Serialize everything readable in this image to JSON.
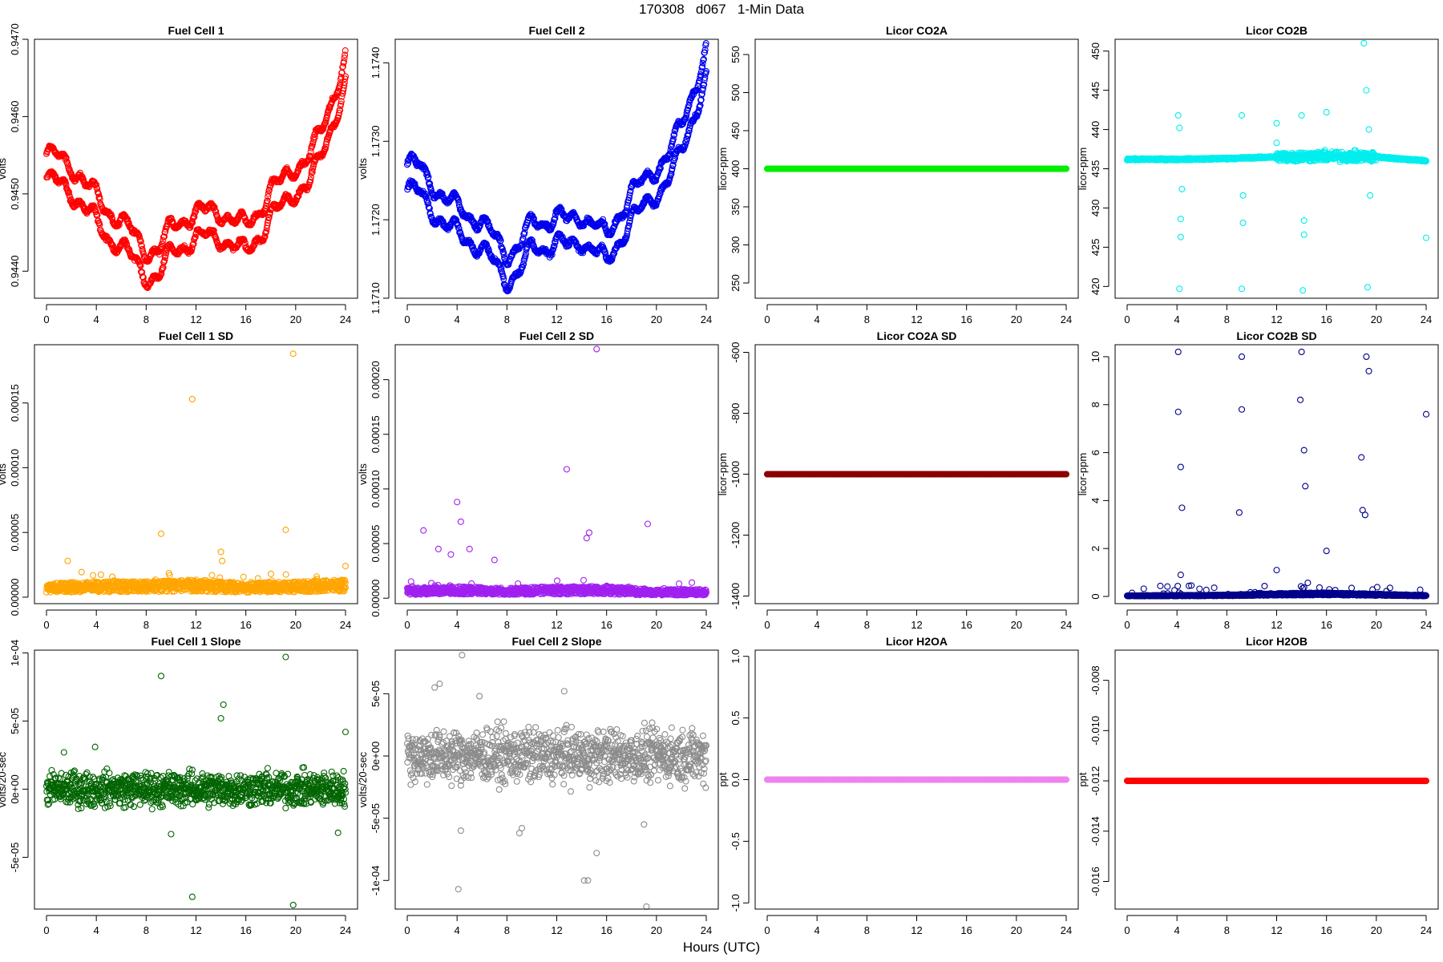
{
  "page_title": "170308   d067   1-Min Data",
  "x_axis_title": "Hours (UTC)",
  "chart_data": [
    {
      "title": "Fuel Cell 1",
      "type": "scatter",
      "ylabel": "volts",
      "color": "#ff0000",
      "xlim": [
        0,
        24
      ],
      "ylim": [
        0.94365,
        0.947
      ],
      "xticks": [
        "0",
        "4",
        "8",
        "12",
        "16",
        "20",
        "24"
      ],
      "yticks": [
        0.944,
        0.945,
        0.946,
        0.947
      ],
      "ytick_labels": [
        "0.9440",
        "0.9450",
        "0.9460",
        "0.9470"
      ],
      "series": [
        {
          "x": [
            0,
            1,
            2,
            3,
            4,
            5,
            6,
            7,
            8,
            9,
            10,
            11,
            12,
            13,
            14,
            15,
            16,
            17,
            18,
            19,
            20,
            21,
            22,
            23,
            24
          ],
          "y": [
            0.94535,
            0.9453,
            0.9452,
            0.945,
            0.9448,
            0.9446,
            0.9445,
            0.9443,
            0.9441,
            0.9441,
            0.9444,
            0.9445,
            0.9446,
            0.9446,
            0.9446,
            0.9445,
            0.9444,
            0.9446,
            0.9449,
            0.945,
            0.9452,
            0.9453,
            0.9456,
            0.9461,
            0.9466
          ]
        }
      ]
    },
    {
      "title": "Fuel Cell 2",
      "type": "scatter",
      "ylabel": "volts",
      "color": "#0000ee",
      "xlim": [
        0,
        24
      ],
      "ylim": [
        1.171,
        1.1743
      ],
      "xticks": [
        "0",
        "4",
        "8",
        "12",
        "16",
        "20",
        "24"
      ],
      "yticks": [
        1.171,
        1.172,
        1.173,
        1.174
      ],
      "ytick_labels": [
        "1.1710",
        "1.1720",
        "1.1730",
        "1.1740"
      ],
      "series": [
        {
          "x": [
            0,
            1,
            2,
            3,
            4,
            5,
            6,
            7,
            8,
            9,
            10,
            11,
            12,
            13,
            14,
            15,
            16,
            17,
            18,
            19,
            20,
            21,
            22,
            23,
            24
          ],
          "y": [
            1.17255,
            1.1725,
            1.1723,
            1.1721,
            1.172,
            1.1719,
            1.1718,
            1.1716,
            1.1714,
            1.1715,
            1.1718,
            1.1718,
            1.1719,
            1.1718,
            1.1719,
            1.1718,
            1.1716,
            1.1719,
            1.1722,
            1.1723,
            1.1725,
            1.1727,
            1.173,
            1.1735,
            1.174
          ]
        }
      ]
    },
    {
      "title": "Licor CO2A",
      "type": "scatter",
      "ylabel": "licor-ppm",
      "color": "#00ee00",
      "xlim": [
        0,
        24
      ],
      "ylim": [
        230,
        570
      ],
      "xticks": [
        "0",
        "4",
        "8",
        "12",
        "16",
        "20",
        "24"
      ],
      "yticks": [
        250,
        300,
        350,
        400,
        450,
        500,
        550
      ],
      "ytick_labels": [
        "250",
        "300",
        "350",
        "400",
        "450",
        "500",
        "550"
      ],
      "series": [
        {
          "x": [
            0,
            24
          ],
          "y": [
            400,
            400
          ]
        }
      ]
    },
    {
      "title": "Licor CO2B",
      "type": "scatter",
      "ylabel": "licor-ppm",
      "color": "#00eeee",
      "xlim": [
        0,
        24
      ],
      "ylim": [
        418.5,
        451.5
      ],
      "xticks": [
        "0",
        "4",
        "8",
        "12",
        "16",
        "20",
        "24"
      ],
      "yticks": [
        420,
        425,
        430,
        435,
        440,
        445,
        450
      ],
      "ytick_labels": [
        "420",
        "425",
        "430",
        "435",
        "440",
        "445",
        "450"
      ],
      "series": [
        {
          "x": [
            0,
            4,
            8,
            12,
            16,
            20,
            24
          ],
          "y": [
            436.2,
            436.2,
            436.3,
            436.5,
            436.6,
            436.5,
            436.0
          ]
        }
      ],
      "outliers": {
        "x": [
          4.1,
          4.2,
          4.2,
          4.3,
          4.3,
          4.4,
          9.2,
          9.2,
          9.3,
          9.3,
          12.0,
          12.0,
          14.0,
          14.1,
          14.2,
          14.2,
          16.0,
          19.0,
          19.2,
          19.3,
          19.4,
          19.5,
          24.0
        ],
        "y": [
          441.8,
          440.2,
          419.7,
          428.6,
          426.3,
          432.4,
          441.8,
          419.7,
          431.6,
          428.1,
          440.8,
          438.3,
          441.8,
          419.5,
          428.4,
          426.6,
          442.2,
          451.0,
          445.0,
          419.9,
          440.0,
          431.6,
          426.2
        ]
      }
    },
    {
      "title": "Fuel Cell 1 SD",
      "type": "scatter",
      "ylabel": "volts",
      "color": "#ffa500",
      "xlim": [
        0,
        24
      ],
      "ylim": [
        -5e-06,
        0.000195
      ],
      "xticks": [
        "0",
        "4",
        "8",
        "12",
        "16",
        "20",
        "24"
      ],
      "yticks": [
        0,
        5e-05,
        0.0001,
        0.00015
      ],
      "ytick_labels": [
        "0.00000",
        "0.00005",
        "0.00010",
        "0.00015"
      ],
      "series": [
        {
          "x": [
            0,
            4,
            8,
            12,
            16,
            20,
            24
          ],
          "y": [
            8e-06,
            9e-06,
            9e-06,
            1e-05,
            8e-06,
            9e-06,
            1e-05
          ]
        }
      ],
      "outliers": {
        "x": [
          1.7,
          9.2,
          11.7,
          14.0,
          14.1,
          19.2,
          19.8,
          24.0
        ],
        "y": [
          2.8e-05,
          4.9e-05,
          0.000153,
          3.5e-05,
          2.8e-05,
          5.2e-05,
          0.000188,
          2.4e-05
        ]
      }
    },
    {
      "title": "Fuel Cell 2 SD",
      "type": "scatter",
      "ylabel": "volts",
      "color": "#a020f0",
      "xlim": [
        0,
        24
      ],
      "ylim": [
        -5e-06,
        0.000232
      ],
      "xticks": [
        "0",
        "4",
        "8",
        "12",
        "16",
        "20",
        "24"
      ],
      "yticks": [
        0,
        5e-05,
        0.0001,
        0.00015,
        0.0002
      ],
      "ytick_labels": [
        "0.00000",
        "0.00005",
        "0.00010",
        "0.00015",
        "0.00020"
      ],
      "series": [
        {
          "x": [
            0,
            4,
            8,
            12,
            16,
            20,
            24
          ],
          "y": [
            7e-06,
            8e-06,
            7e-06,
            8e-06,
            8e-06,
            6e-06,
            6e-06
          ]
        }
      ],
      "outliers": {
        "x": [
          1.3,
          2.5,
          3.5,
          4.0,
          4.3,
          5.0,
          7.0,
          12.8,
          14.4,
          14.6,
          15.2,
          19.3
        ],
        "y": [
          6.2e-05,
          4.5e-05,
          4e-05,
          8.8e-05,
          7e-05,
          4.5e-05,
          3.5e-05,
          0.000118,
          5.5e-05,
          6e-05,
          0.000228,
          6.8e-05
        ]
      }
    },
    {
      "title": "Licor CO2A SD",
      "type": "scatter",
      "ylabel": "licor-ppm",
      "color": "#8b0000",
      "xlim": [
        0,
        24
      ],
      "ylim": [
        -1425,
        -575
      ],
      "xticks": [
        "0",
        "4",
        "8",
        "12",
        "16",
        "20",
        "24"
      ],
      "yticks": [
        -1400,
        -1200,
        -1000,
        -800,
        -600
      ],
      "ytick_labels": [
        "-1400",
        "-1200",
        "-1000",
        "-800",
        "-600"
      ],
      "series": [
        {
          "x": [
            0,
            24
          ],
          "y": [
            -1000,
            -1000
          ]
        }
      ]
    },
    {
      "title": "Licor CO2B SD",
      "type": "scatter",
      "ylabel": "licor-ppm",
      "color": "#00008b",
      "xlim": [
        0,
        24
      ],
      "ylim": [
        -0.3,
        10.5
      ],
      "xticks": [
        "0",
        "4",
        "8",
        "12",
        "16",
        "20",
        "24"
      ],
      "yticks": [
        0,
        2,
        4,
        6,
        8,
        10
      ],
      "ytick_labels": [
        "0",
        "2",
        "4",
        "6",
        "8",
        "10"
      ],
      "series": [
        {
          "x": [
            0,
            4,
            8,
            12,
            16,
            20,
            24
          ],
          "y": [
            0.03,
            0.04,
            0.05,
            0.1,
            0.12,
            0.08,
            0.04
          ]
        }
      ],
      "outliers": {
        "x": [
          4.1,
          4.1,
          4.3,
          4.4,
          4.3,
          9.2,
          9.2,
          9.0,
          14.0,
          13.9,
          14.2,
          14.3,
          12.0,
          16.0,
          18.8,
          19.2,
          19.4,
          19.1,
          18.9,
          24.0
        ],
        "y": [
          10.2,
          7.7,
          5.4,
          3.7,
          0.9,
          10.0,
          7.8,
          3.5,
          10.2,
          8.2,
          6.1,
          4.6,
          1.1,
          1.9,
          5.8,
          10.0,
          9.4,
          3.4,
          3.6,
          7.6
        ]
      }
    },
    {
      "title": "Fuel Cell 1 Slope",
      "type": "scatter",
      "ylabel": "volts/20-sec",
      "color": "#006400",
      "xlim": [
        0,
        24
      ],
      "ylim": [
        -8.8e-05,
        0.000102
      ],
      "xticks": [
        "0",
        "4",
        "8",
        "12",
        "16",
        "20",
        "24"
      ],
      "yticks": [
        -5e-05,
        0,
        5e-05,
        0.0001
      ],
      "ytick_labels": [
        "-5e-05",
        "0e+00",
        "5e-05",
        "1e-04"
      ],
      "series": [
        {
          "x": [
            0,
            4,
            8,
            12,
            16,
            20,
            24
          ],
          "y": [
            0,
            0,
            0,
            0,
            0,
            0,
            0
          ]
        }
      ],
      "outliers": {
        "x": [
          9.2,
          11.7,
          14.0,
          14.2,
          19.2,
          19.8,
          24.0,
          3.9,
          1.4,
          23.4,
          10.0
        ],
        "y": [
          8.3e-05,
          -7.9e-05,
          5.2e-05,
          6.2e-05,
          9.7e-05,
          -8.5e-05,
          4.2e-05,
          3.1e-05,
          2.7e-05,
          -3.2e-05,
          -3.3e-05
        ]
      }
    },
    {
      "title": "Fuel Cell 2 Slope",
      "type": "scatter",
      "ylabel": "volts/20-sec",
      "color": "#8c8c8c",
      "xlim": [
        0,
        24
      ],
      "ylim": [
        -0.000123,
        8.5e-05
      ],
      "xticks": [
        "0",
        "4",
        "8",
        "12",
        "16",
        "20",
        "24"
      ],
      "yticks": [
        -0.0001,
        -5e-05,
        0,
        5e-05
      ],
      "ytick_labels": [
        "-1e-04",
        "-5e-05",
        "0e+00",
        "5e-05"
      ],
      "series": [
        {
          "x": [
            0,
            4,
            8,
            12,
            16,
            20,
            24
          ],
          "y": [
            0,
            0,
            0,
            0,
            0,
            0,
            0
          ]
        }
      ],
      "outliers": {
        "x": [
          4.4,
          2.2,
          2.6,
          4.1,
          14.2,
          14.5,
          15.2,
          19.2,
          19.0,
          12.6,
          9.2,
          9.0,
          5.8,
          4.3
        ],
        "y": [
          8.1e-05,
          5.5e-05,
          5.8e-05,
          -0.000107,
          -0.0001,
          -0.0001,
          -7.8e-05,
          -0.000121,
          -5.5e-05,
          5.2e-05,
          -5.8e-05,
          -6.2e-05,
          4.8e-05,
          -6e-05
        ]
      }
    },
    {
      "title": "Licor H2OA",
      "type": "scatter",
      "ylabel": "ppt",
      "color": "#ee82ee",
      "xlim": [
        0,
        24
      ],
      "ylim": [
        -1.05,
        1.05
      ],
      "xticks": [
        "0",
        "4",
        "8",
        "12",
        "16",
        "20",
        "24"
      ],
      "yticks": [
        -1,
        -0.5,
        0,
        0.5,
        1
      ],
      "ytick_labels": [
        "-1.0",
        "-0.5",
        "0.0",
        "0.5",
        "1.0"
      ],
      "series": [
        {
          "x": [
            0,
            24
          ],
          "y": [
            0,
            0
          ]
        }
      ]
    },
    {
      "title": "Licor H2OB",
      "type": "scatter",
      "ylabel": "ppt",
      "color": "#ff0000",
      "xlim": [
        0,
        24
      ],
      "ylim": [
        -0.0171,
        -0.0068
      ],
      "xticks": [
        "0",
        "4",
        "8",
        "12",
        "16",
        "20",
        "24"
      ],
      "yticks": [
        -0.016,
        -0.014,
        -0.012,
        -0.01,
        -0.008
      ],
      "ytick_labels": [
        "-0.016",
        "-0.014",
        "-0.012",
        "-0.010",
        "-0.008"
      ],
      "series": [
        {
          "x": [
            0,
            24
          ],
          "y": [
            -0.012,
            -0.012
          ]
        }
      ]
    }
  ]
}
